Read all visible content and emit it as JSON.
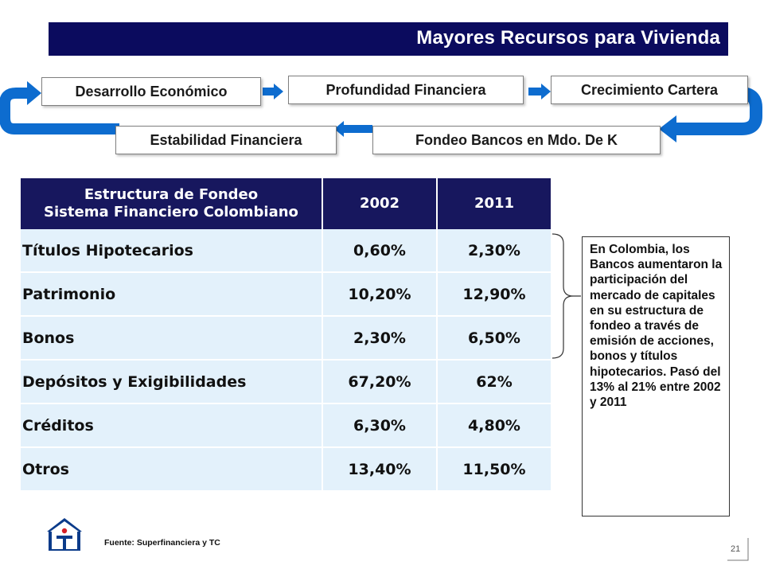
{
  "title": "Mayores Recursos para Vivienda",
  "flow": {
    "desarrollo": "Desarrollo Económico",
    "profundidad": "Profundidad Financiera",
    "crecimiento": "Crecimiento Cartera",
    "estabilidad": "Estabilidad Financiera",
    "fondeo": "Fondeo Bancos en Mdo. De K"
  },
  "table": {
    "header_line1": "Estructura de Fondeo",
    "header_line2": "Sistema Financiero Colombiano",
    "col_2002": "2002",
    "col_2011": "2011",
    "rows": [
      {
        "label": "Títulos Hipotecarios",
        "v2002": "0,60%",
        "v2011": "2,30%"
      },
      {
        "label": "Patrimonio",
        "v2002": "10,20%",
        "v2011": "12,90%"
      },
      {
        "label": "Bonos",
        "v2002": "2,30%",
        "v2011": "6,50%"
      },
      {
        "label": "Depósitos y Exigibilidades",
        "v2002": "67,20%",
        "v2011": "62%"
      },
      {
        "label": "Créditos",
        "v2002": "6,30%",
        "v2011": "4,80%"
      },
      {
        "label": "Otros",
        "v2002": "13,40%",
        "v2011": "11,50%"
      }
    ]
  },
  "note": "En Colombia, los Bancos aumentaron la participación del mercado de capitales en su estructura de fondeo a través de emisión de acciones, bonos y títulos hipotecarios. Pasó del 13% al 21% entre 2002 y 2011",
  "source": "Fuente: Superfinanciera y TC",
  "page_number": "21",
  "colors": {
    "title_bg": "#0b0b5e",
    "header_bg": "#17175e",
    "cell_bg": "#e3f1fb",
    "arrow_blue": "#0d6ccf"
  }
}
